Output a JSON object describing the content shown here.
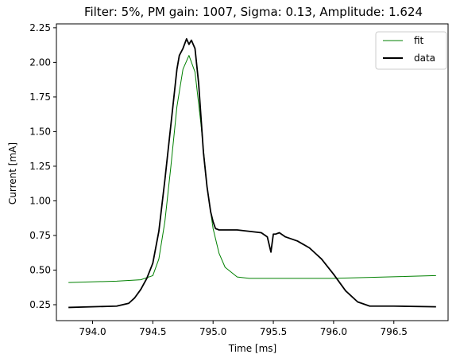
{
  "chart_data": {
    "type": "line",
    "title": "Filter: 5%, PM gain: 1007, Sigma: 0.13, Amplitude: 1.624",
    "xlabel": "Time [ms]",
    "ylabel": "Current [mA]",
    "xlim": [
      793.7,
      796.95
    ],
    "ylim": [
      0.135,
      2.278
    ],
    "x_ticks": [
      794.0,
      794.5,
      795.0,
      795.5,
      796.0,
      796.5
    ],
    "x_tick_labels": [
      "794.0",
      "794.5",
      "795.0",
      "795.5",
      "796.0",
      "796.5"
    ],
    "y_ticks": [
      0.25,
      0.5,
      0.75,
      1.0,
      1.25,
      1.5,
      1.75,
      2.0,
      2.25
    ],
    "y_tick_labels": [
      "0.25",
      "0.50",
      "0.75",
      "1.00",
      "1.25",
      "1.50",
      "1.75",
      "2.00",
      "2.25"
    ],
    "grid": false,
    "legend_position": "top-right",
    "series": [
      {
        "name": "fit",
        "color": "#008000",
        "x": [
          793.8,
          794.2,
          794.4,
          794.5,
          794.55,
          794.6,
          794.65,
          794.7,
          794.75,
          794.8,
          794.85,
          794.9,
          794.95,
          795.0,
          795.05,
          795.1,
          795.2,
          795.3,
          796.0,
          796.85
        ],
        "y": [
          0.41,
          0.42,
          0.43,
          0.46,
          0.58,
          0.85,
          1.25,
          1.68,
          1.95,
          2.05,
          1.93,
          1.55,
          1.1,
          0.8,
          0.62,
          0.52,
          0.45,
          0.44,
          0.44,
          0.46
        ]
      },
      {
        "name": "data",
        "color": "#000000",
        "x": [
          793.8,
          794.2,
          794.3,
          794.35,
          794.4,
          794.45,
          794.5,
          794.55,
          794.6,
          794.65,
          794.7,
          794.72,
          794.75,
          794.78,
          794.8,
          794.82,
          794.85,
          794.88,
          794.9,
          794.92,
          794.95,
          794.98,
          795.0,
          795.02,
          795.05,
          795.1,
          795.2,
          795.3,
          795.4,
          795.45,
          795.48,
          795.5,
          795.52,
          795.55,
          795.6,
          795.7,
          795.8,
          795.9,
          796.0,
          796.1,
          796.2,
          796.3,
          796.5,
          796.85
        ],
        "y": [
          0.23,
          0.24,
          0.26,
          0.3,
          0.36,
          0.44,
          0.55,
          0.78,
          1.15,
          1.55,
          1.95,
          2.05,
          2.1,
          2.17,
          2.13,
          2.16,
          2.1,
          1.85,
          1.6,
          1.35,
          1.1,
          0.92,
          0.85,
          0.8,
          0.79,
          0.79,
          0.79,
          0.78,
          0.77,
          0.74,
          0.63,
          0.76,
          0.76,
          0.77,
          0.74,
          0.71,
          0.66,
          0.58,
          0.47,
          0.35,
          0.27,
          0.24,
          0.24,
          0.235
        ]
      }
    ]
  }
}
